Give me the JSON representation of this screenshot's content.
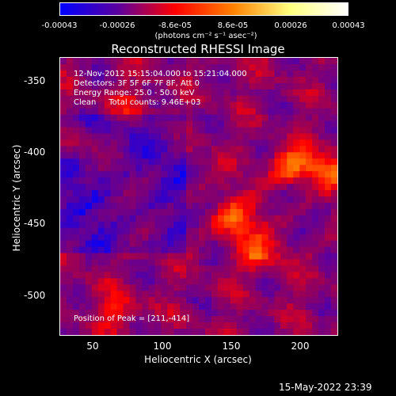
{
  "colorbar": {
    "ticks": [
      "-0.00043",
      "-0.00026",
      "-8.6e-05",
      "8.6e-05",
      "0.00026",
      "0.00043"
    ],
    "units": "(photons cm⁻² s⁻¹ asec⁻²)",
    "colors": [
      "#0000ff",
      "#5a00a0",
      "#ff0000",
      "#ff8000",
      "#ffff80",
      "#ffffff"
    ]
  },
  "title": "Reconstructed RHESSI Image",
  "info": {
    "line1": "12-Nov-2012 15:15:04.000 to 15:21:04.000",
    "line2": "Detectors: 3F 5F 6F 7F 8F, Att 0",
    "line3": "Energy Range: 25.0 - 50.0 keV",
    "line4": "Clean     Total counts: 9.46E+03",
    "peak": "Position of Peak = [211,-414]"
  },
  "axes": {
    "ylabel": "Heliocentric Y (arcsec)",
    "xlabel": "Heliocentric X (arcsec)",
    "yticks": [
      "-350",
      "-400",
      "-450",
      "-500"
    ],
    "xticks": [
      "50",
      "100",
      "150",
      "200"
    ]
  },
  "timestamp": "15-May-2022 23:39"
}
